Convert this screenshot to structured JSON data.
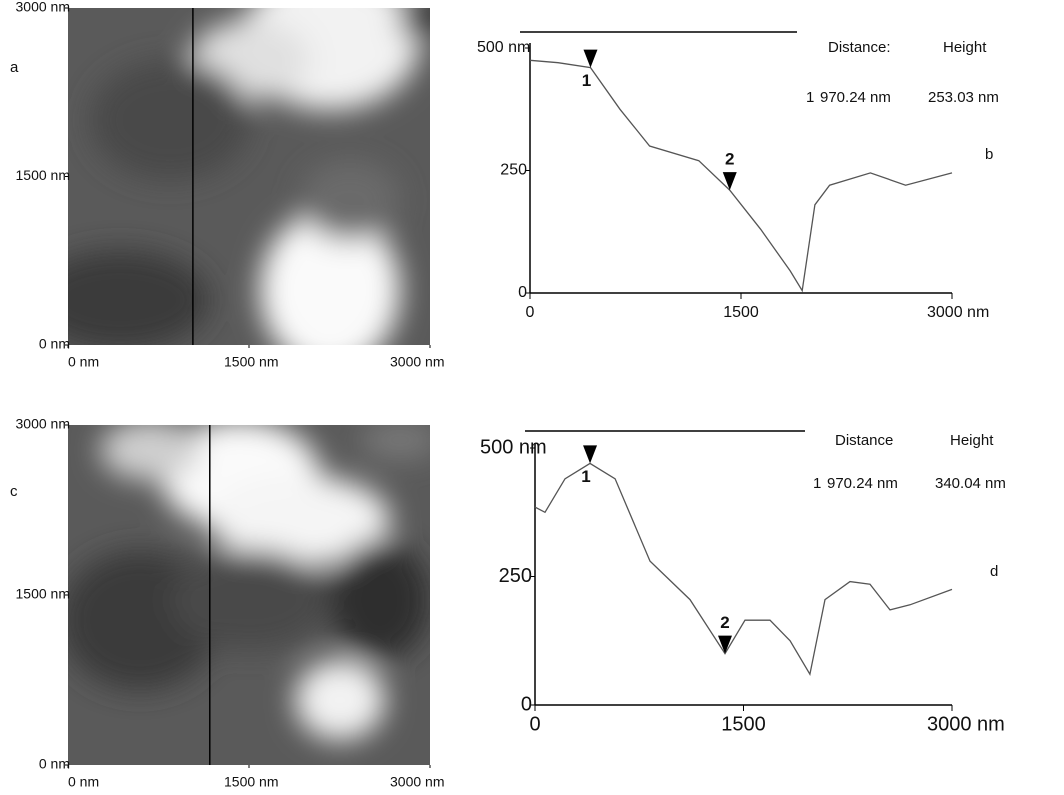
{
  "chart_data": [
    {
      "type": "image",
      "panel": "a",
      "xlim": [
        0,
        3000
      ],
      "ylim": [
        0,
        3000
      ],
      "xticks": [
        {
          "value": 0,
          "label": "0 nm"
        },
        {
          "value": 1500,
          "label": "1500 nm"
        },
        {
          "value": 3000,
          "label": "3000 nm"
        }
      ],
      "yticks": [
        {
          "value": 0,
          "label": "0 nm"
        },
        {
          "value": 1500,
          "label": "1500 nm"
        },
        {
          "value": 3000,
          "label": "3000 nm"
        }
      ],
      "section_x": 1035
    },
    {
      "type": "line",
      "panel": "b",
      "xlim": [
        0,
        3000
      ],
      "ylim": [
        0,
        500
      ],
      "xticks": [
        0,
        1500,
        {
          "value": 3000,
          "label": "3000 nm"
        }
      ],
      "yticks": [
        0,
        250,
        {
          "value": 500,
          "label": "500 nm"
        }
      ],
      "x": [
        0,
        200,
        430,
        640,
        850,
        1200,
        1420,
        1640,
        1850,
        1935,
        2025,
        2130,
        2420,
        2670,
        3000
      ],
      "values": [
        475,
        470,
        460,
        375,
        300,
        270,
        210,
        130,
        45,
        5,
        180,
        220,
        245,
        220,
        245
      ],
      "color": "#555555",
      "markers": [
        {
          "x": 430,
          "label": "1"
        },
        {
          "x": 1420,
          "label": "2"
        }
      ],
      "readout": {
        "headers": [
          "Distance:",
          "Height"
        ],
        "index": "1",
        "distance": "970.24 nm",
        "height": "253.03 nm"
      }
    },
    {
      "type": "image",
      "panel": "c",
      "xlim": [
        0,
        3000
      ],
      "ylim": [
        0,
        3000
      ],
      "xticks": [
        {
          "value": 0,
          "label": "0 nm"
        },
        {
          "value": 1500,
          "label": "1500 nm"
        },
        {
          "value": 3000,
          "label": "3000 nm"
        }
      ],
      "yticks": [
        {
          "value": 0,
          "label": "0 nm"
        },
        {
          "value": 1500,
          "label": "1500 nm"
        },
        {
          "value": 3000,
          "label": "3000 nm"
        }
      ],
      "section_x": 1175
    },
    {
      "type": "line",
      "panel": "d",
      "xlim": [
        0,
        3000
      ],
      "ylim": [
        0,
        500
      ],
      "xticks": [
        0,
        1500,
        {
          "value": 3000,
          "label": "3000 nm"
        }
      ],
      "yticks": [
        0,
        250,
        {
          "value": 500,
          "label": "500 nm"
        }
      ],
      "x": [
        0,
        72,
        216,
        396,
        576,
        827,
        1115,
        1367,
        1511,
        1691,
        1835,
        1978,
        2086,
        2266,
        2410,
        2554,
        2698,
        3000
      ],
      "values": [
        385,
        375,
        440,
        470,
        440,
        280,
        205,
        100,
        165,
        165,
        125,
        60,
        205,
        240,
        235,
        185,
        195,
        225
      ],
      "color": "#555555",
      "markers": [
        {
          "x": 396,
          "label": "1"
        },
        {
          "x": 1367,
          "label": "2"
        }
      ],
      "readout": {
        "headers": [
          "Distance",
          "Height"
        ],
        "index": "1",
        "distance": "970.24 nm",
        "height": "340.04 nm"
      }
    }
  ]
}
